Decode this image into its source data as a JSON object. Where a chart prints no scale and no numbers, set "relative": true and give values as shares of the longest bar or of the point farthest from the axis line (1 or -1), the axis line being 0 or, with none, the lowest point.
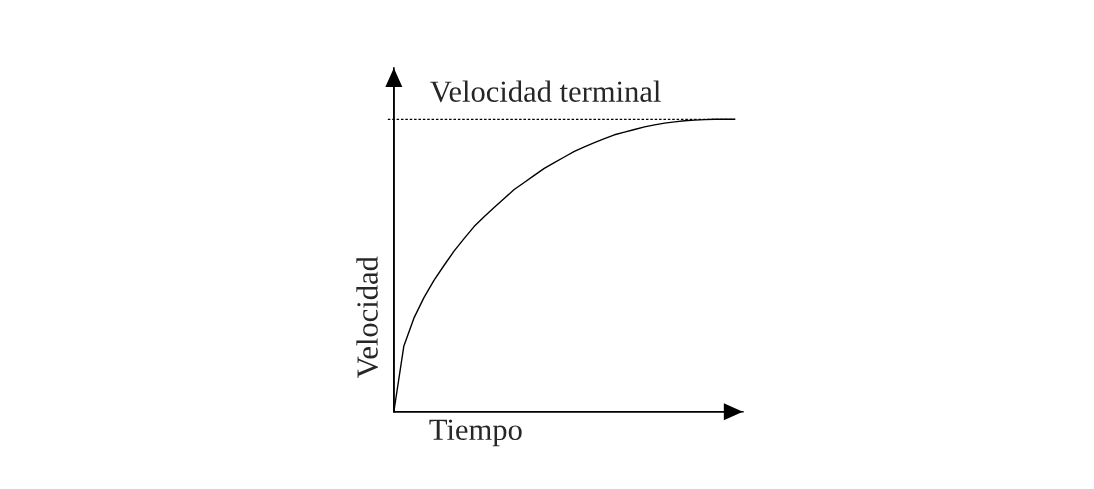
{
  "chart_data": {
    "type": "line",
    "relative": true,
    "xlabel": "Tiempo",
    "ylabel": "Velocidad",
    "categories": [
      null,
      null,
      null,
      null,
      null,
      null,
      null,
      null,
      null,
      null,
      null,
      null,
      null,
      null,
      null,
      null,
      null,
      null,
      null,
      null,
      null,
      null,
      null,
      null,
      null,
      null,
      null,
      null,
      null,
      null,
      null,
      null,
      null,
      null,
      null
    ],
    "series": [
      {
        "color": "#000000",
        "values": [
          0,
          0.225,
          0.32,
          0.39,
          0.449,
          0.5,
          0.549,
          0.592,
          0.633,
          0.667,
          0.698,
          0.729,
          0.76,
          0.784,
          0.808,
          0.832,
          0.852,
          0.871,
          0.89,
          0.906,
          0.92,
          0.934,
          0.947,
          0.956,
          0.965,
          0.974,
          0.981,
          0.987,
          0.991,
          0.995,
          0.997,
          0.999,
          1.0,
          1.0,
          1.0
        ]
      }
    ],
    "ref_lines": [
      {
        "axis": "y",
        "value": 1,
        "label": "Velocidad terminal",
        "line_style": "dotted",
        "color": "#000000"
      }
    ],
    "line_style": "solid"
  }
}
